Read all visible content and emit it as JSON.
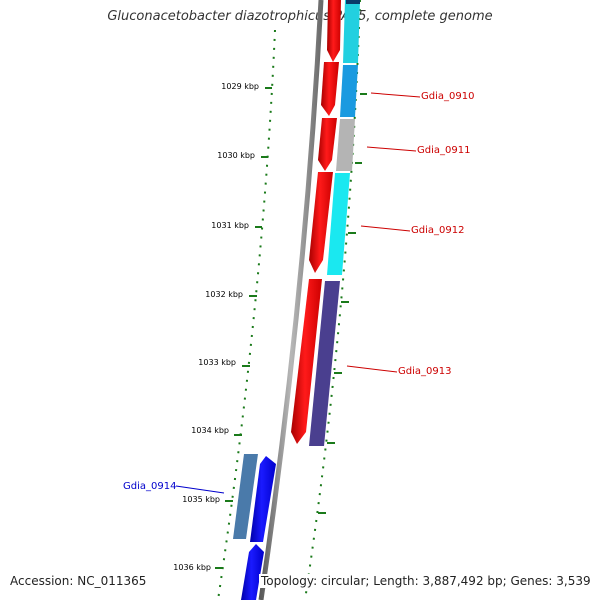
{
  "title": "Gluconacetobacter diazotrophicus PAI 5, complete genome",
  "accession": "Accession: NC_011365",
  "topology": "Topology: circular; Length: 3,887,492 bp; Genes: 3,539",
  "colors": {
    "background": "#ffffff",
    "backbone": "#808080",
    "tick": "#1a7a1a",
    "forward_gene_label": "#cc0000",
    "reverse_gene_label": "#0000cc"
  },
  "ticks": [
    {
      "label": "1029 kbp"
    },
    {
      "label": "1030 kbp"
    },
    {
      "label": "1031 kbp"
    },
    {
      "label": "1032 kbp"
    },
    {
      "label": "1033 kbp"
    },
    {
      "label": "1034 kbp"
    },
    {
      "label": "1035 kbp"
    },
    {
      "label": "1036 kbp"
    }
  ],
  "gene_labels": [
    {
      "name": "Gdia_0910",
      "strand": "forward"
    },
    {
      "name": "Gdia_0911",
      "strand": "forward"
    },
    {
      "name": "Gdia_0912",
      "strand": "forward"
    },
    {
      "name": "Gdia_0913",
      "strand": "forward"
    },
    {
      "name": "Gdia_0914",
      "strand": "reverse"
    }
  ]
}
